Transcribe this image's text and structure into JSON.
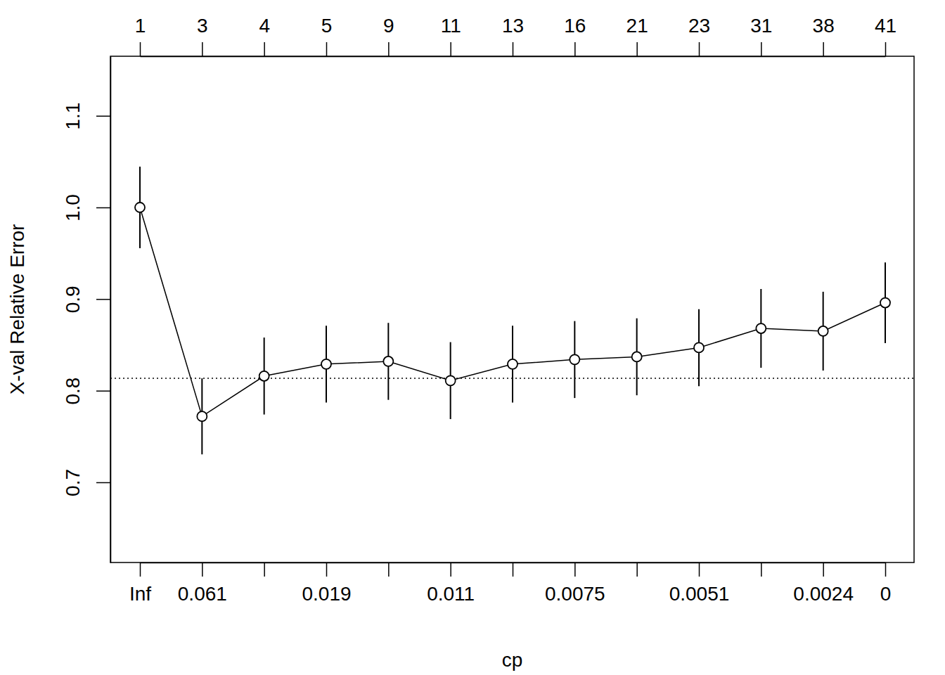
{
  "chart_data": {
    "type": "line",
    "x_label": "cp",
    "y_label": "X-val Relative Error",
    "categories": [
      "Inf",
      "0.061",
      null,
      "0.019",
      null,
      "0.011",
      null,
      "0.0075",
      null,
      "0.0051",
      null,
      "0.0024",
      "0"
    ],
    "x2_categories": [
      1,
      3,
      4,
      5,
      9,
      11,
      13,
      16,
      21,
      23,
      31,
      38,
      41
    ],
    "values": [
      1.0,
      0.772,
      0.816,
      0.829,
      0.832,
      0.811,
      0.829,
      0.834,
      0.837,
      0.847,
      0.868,
      0.865,
      0.896
    ],
    "errors": [
      0.0445,
      0.0415,
      0.042,
      0.042,
      0.042,
      0.042,
      0.042,
      0.042,
      0.042,
      0.042,
      0.043,
      0.043,
      0.044
    ],
    "hline": 0.8135,
    "ylim": [
      0.6125,
      1.165
    ],
    "yticks": [
      0.7,
      0.8,
      0.9,
      {
        "value": 1,
        "label": "1.0"
      },
      1.1
    ],
    "color": "#000000",
    "marker": "open-circle",
    "line_style": "solid",
    "grid": false
  }
}
